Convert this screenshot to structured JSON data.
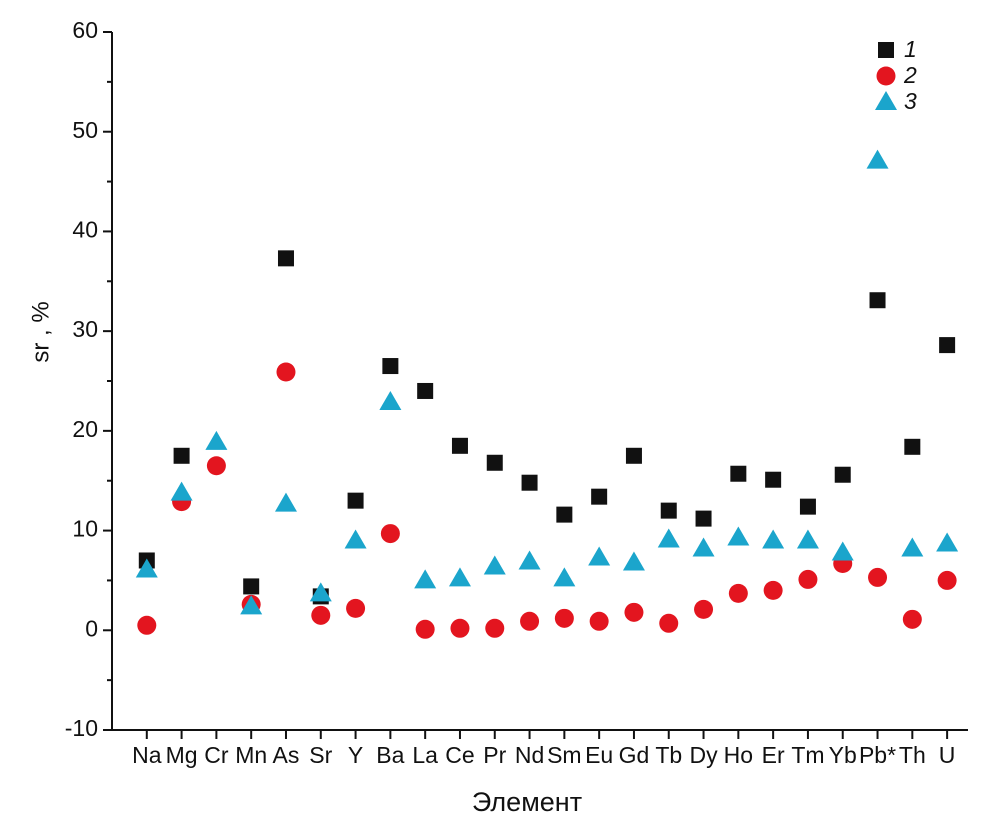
{
  "chart_data": {
    "type": "scatter",
    "x_label": "Элемент",
    "y_label": "sr , %",
    "categories": [
      "Na",
      "Mg",
      "Cr",
      "Mn",
      "As",
      "Sr",
      "Y",
      "Ba",
      "La",
      "Ce",
      "Pr",
      "Nd",
      "Sm",
      "Eu",
      "Gd",
      "Tb",
      "Dy",
      "Ho",
      "Er",
      "Tm",
      "Yb",
      "Pb*",
      "Th",
      "U"
    ],
    "series": [
      {
        "name": "1",
        "marker": "square",
        "color": "#111111",
        "values": [
          7.0,
          17.5,
          null,
          4.4,
          37.3,
          3.4,
          13.0,
          26.5,
          24.0,
          18.5,
          16.8,
          14.8,
          11.6,
          13.4,
          17.5,
          12.0,
          11.2,
          15.7,
          15.1,
          12.4,
          15.6,
          33.1,
          18.4,
          28.6
        ]
      },
      {
        "name": "2",
        "marker": "circle",
        "color": "#e3151f",
        "values": [
          0.5,
          12.9,
          16.5,
          2.6,
          25.9,
          1.5,
          2.2,
          9.7,
          0.1,
          0.2,
          0.2,
          0.9,
          1.2,
          0.9,
          1.8,
          0.7,
          2.1,
          3.7,
          4.0,
          5.1,
          6.7,
          5.3,
          1.1,
          5.0
        ]
      },
      {
        "name": "3",
        "marker": "triangle",
        "color": "#1ba5cc",
        "values": [
          6.1,
          13.8,
          18.9,
          2.4,
          12.7,
          3.7,
          9.0,
          22.9,
          5.0,
          5.2,
          6.4,
          6.9,
          5.2,
          7.3,
          6.8,
          9.1,
          8.2,
          9.3,
          9.0,
          9.0,
          7.8,
          47.1,
          8.2,
          8.7
        ]
      }
    ],
    "ylim": [
      -10,
      60
    ],
    "yticks": [
      -10,
      0,
      10,
      20,
      30,
      40,
      50,
      60
    ],
    "y_minor_ticks": [
      -5,
      5,
      15,
      25,
      35,
      45,
      55
    ],
    "legend": "top-right"
  }
}
